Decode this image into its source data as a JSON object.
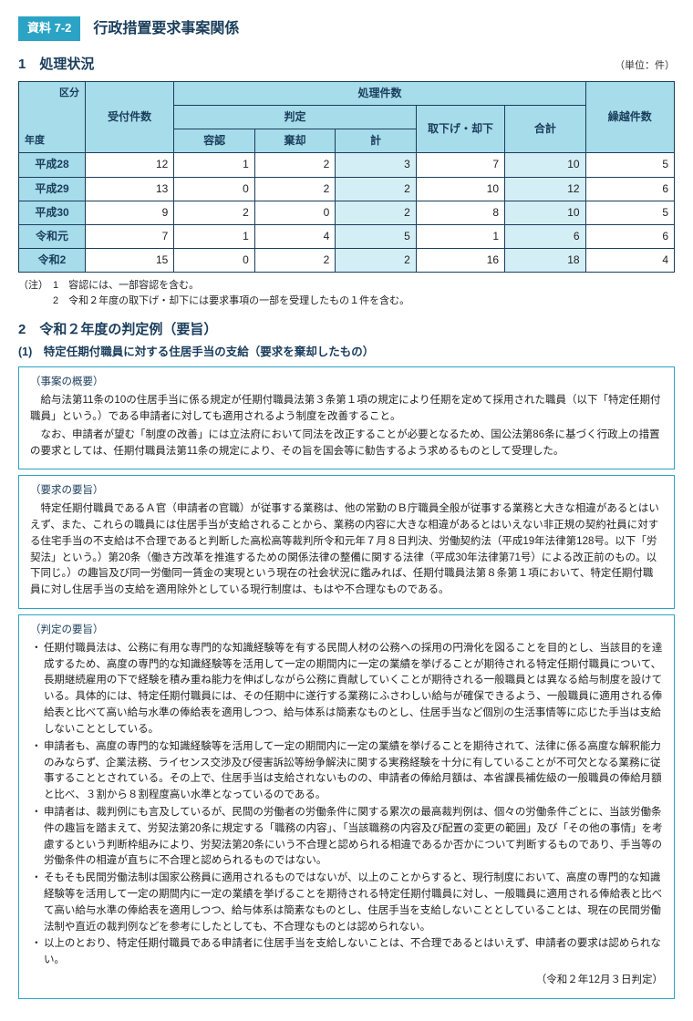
{
  "header": {
    "tag": "資料 7-2",
    "title": "行政措置要求事案関係"
  },
  "section1": {
    "title": "1　処理状況",
    "unit": "（単位：件）",
    "corner": {
      "top": "区分",
      "bottom": "年度"
    },
    "columns": {
      "c1": "受付件数",
      "c2": "処理件数",
      "c3": "繰越件数",
      "sub1": "判定",
      "sub2": "取下げ・却下",
      "sub3": "合計",
      "ss1": "容認",
      "ss2": "棄却",
      "ss3": "計"
    },
    "rows": [
      {
        "y": "平成28",
        "v": [
          "12",
          "1",
          "2",
          "3",
          "7",
          "10",
          "5"
        ]
      },
      {
        "y": "平成29",
        "v": [
          "13",
          "0",
          "2",
          "2",
          "10",
          "12",
          "6"
        ]
      },
      {
        "y": "平成30",
        "v": [
          "9",
          "2",
          "0",
          "2",
          "8",
          "10",
          "5"
        ]
      },
      {
        "y": "令和元",
        "v": [
          "7",
          "1",
          "4",
          "5",
          "1",
          "6",
          "6"
        ]
      },
      {
        "y": "令和2",
        "v": [
          "15",
          "0",
          "2",
          "2",
          "16",
          "18",
          "4"
        ]
      }
    ],
    "notes": {
      "label": "（注）",
      "n1": "1　容認には、一部容認を含む。",
      "n2": "2　令和２年度の取下げ・却下には要求事項の一部を受理したもの１件を含む。"
    }
  },
  "section2": {
    "title": "2　令和２年度の判定例（要旨）",
    "subtitle": "(1)　特定任期付職員に対する住居手当の支給（要求を棄却したもの）",
    "box1": {
      "label": "（事案の概要）",
      "p1": "給与法第11条の10の住居手当に係る規定が任期付職員法第３条第１項の規定により任期を定めて採用された職員（以下「特定任期付職員」という。）である申請者に対しても適用されるよう制度を改善すること。",
      "p2": "なお、申請者が望む「制度の改善」には立法府において同法を改正することが必要となるため、国公法第86条に基づく行政上の措置の要求としては、任期付職員法第11条の規定により、その旨を国会等に勧告するよう求めるものとして受理した。"
    },
    "box2": {
      "label": "（要求の要旨）",
      "p1": "特定任期付職員であるＡ官（申請者の官職）が従事する業務は、他の常勤のＢ庁職員全般が従事する業務と大きな相違があるとはいえず、また、これらの職員には住居手当が支給されることから、業務の内容に大きな相違があるとはいえない非正規の契約社員に対する住宅手当の不支給は不合理であると判断した高松高等裁判所令和元年７月８日判決、労働契約法（平成19年法律第128号。以下「労契法」という。）第20条（働き方改革を推進するための関係法律の整備に関する法律（平成30年法律第71号）による改正前のもの。以下同じ。）の趣旨及び同一労働同一賃金の実現という現在の社会状況に鑑みれば、任期付職員法第８条第１項において、特定任期付職員に対し住居手当の支給を適用除外としている現行制度は、もはや不合理なものである。"
    },
    "box3": {
      "label": "（判定の要旨）",
      "items": [
        "任期付職員法は、公務に有用な専門的な知識経験等を有する民間人材の公務への採用の円滑化を図ることを目的とし、当該目的を達成するため、高度の専門的な知識経験等を活用して一定の期間内に一定の業績を挙げることが期待される特定任期付職員について、長期継続雇用の下で経験を積み重ね能力を伸ばしながら公務に貢献していくことが期待される一般職員とは異なる給与制度を設けている。具体的には、特定任期付職員には、その任期中に遂行する業務にふさわしい給与が確保できるよう、一般職員に適用される俸給表と比べて高い給与水準の俸給表を適用しつつ、給与体系は簡素なものとし、住居手当など個別の生活事情等に応じた手当は支給しないこととしている。",
        "申請者も、高度の専門的な知識経験等を活用して一定の期間内に一定の業績を挙げることを期待されて、法律に係る高度な解釈能力のみならず、企業法務、ライセンス交渉及び侵害訴訟等紛争解決に関する実務経験を十分に有していることが不可欠となる業務に従事することとされている。その上で、住居手当は支給されないものの、申請者の俸給月額は、本省課長補佐級の一般職員の俸給月額と比べ、３割から８割程度高い水準となっているのである。",
        "申請者は、裁判例にも言及しているが、民間の労働者の労働条件に関する累次の最高裁判例は、個々の労働条件ごとに、当該労働条件の趣旨を踏まえて、労契法第20条に規定する「職務の内容」、「当該職務の内容及び配置の変更の範囲」及び「その他の事情」を考慮するという判断枠組みにより、労契法第20条にいう不合理と認められる相違であるか否かについて判断するものであり、手当等の労働条件の相違が直ちに不合理と認められるものではない。",
        "そもそも民間労働法制は国家公務員に適用されるものではないが、以上のことからすると、現行制度において、高度の専門的な知識経験等を活用して一定の期間内に一定の業績を挙げることを期待される特定任期付職員に対し、一般職員に適用される俸給表と比べて高い給与水準の俸給表を適用しつつ、給与体系は簡素なものとし、住居手当を支給しないこととしていることは、現在の民間労働法制や直近の裁判例などを参考にしたとしても、不合理なものとは認められない。",
        "以上のとおり、特定任期付職員である申請者に住居手当を支給しないことは、不合理であるとはいえず、申請者の要求は認められない。"
      ]
    },
    "date": "（令和２年12月３日判定）"
  }
}
